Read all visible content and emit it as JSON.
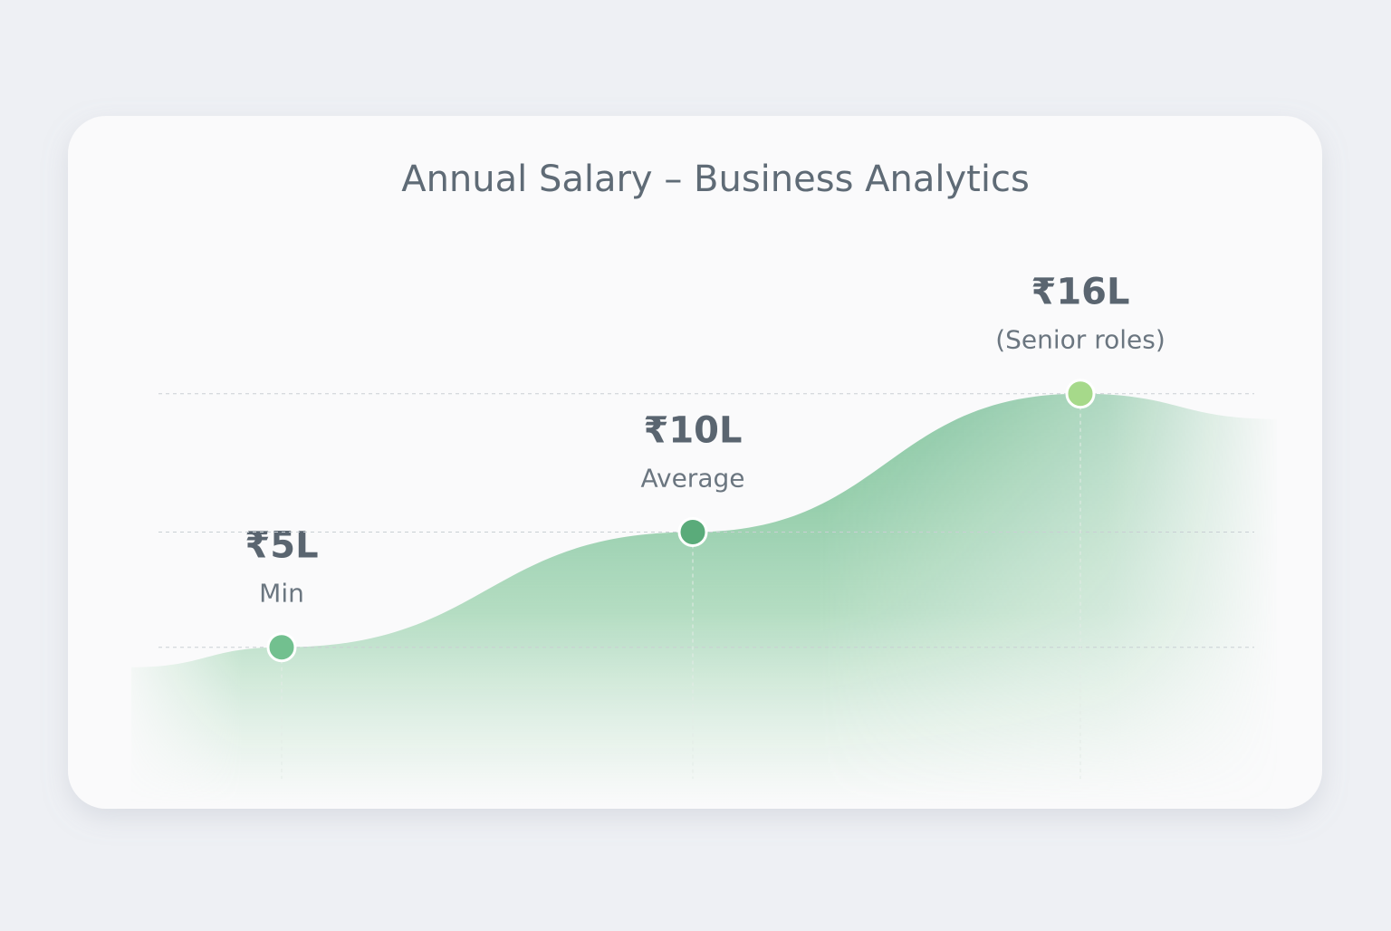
{
  "chart_data": {
    "type": "area",
    "title": "Annual Salary – Business Analytics",
    "categories": [
      "Min",
      "Average",
      "(Senior roles)"
    ],
    "values": [
      5,
      10,
      16
    ],
    "value_labels": [
      "₹5L",
      "₹10L",
      "₹16L"
    ],
    "colors": [
      "#72c08f",
      "#5aab7a",
      "#a6d98a"
    ],
    "color": "#6dbb8a"
  }
}
